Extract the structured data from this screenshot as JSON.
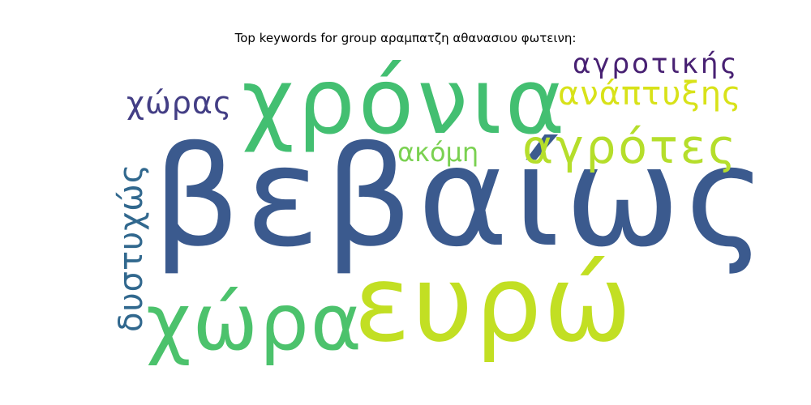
{
  "title": "Top keywords for group αραμπατζη αθανασιου φωτεινη:",
  "words": {
    "vevaios": {
      "text": "βεβαίως",
      "color": "#3b5a8e"
    },
    "chronia": {
      "text": "χρόνια",
      "color": "#43bf71"
    },
    "evro": {
      "text": "ευρώ",
      "color": "#c2df23"
    },
    "chora": {
      "text": "χώρα",
      "color": "#4cc26c"
    },
    "agrotes": {
      "text": "αγρότες",
      "color": "#b5de2b"
    },
    "anaptyxis": {
      "text": "ανάπτυξης",
      "color": "#d8e219"
    },
    "agrotikis": {
      "text": "αγροτικής",
      "color": "#482173"
    },
    "choras": {
      "text": "χώρας",
      "color": "#433e85"
    },
    "akomi": {
      "text": "ακόμη",
      "color": "#7ad151"
    },
    "dystychos": {
      "text": "δυστυχώς",
      "color": "#31688e"
    }
  }
}
